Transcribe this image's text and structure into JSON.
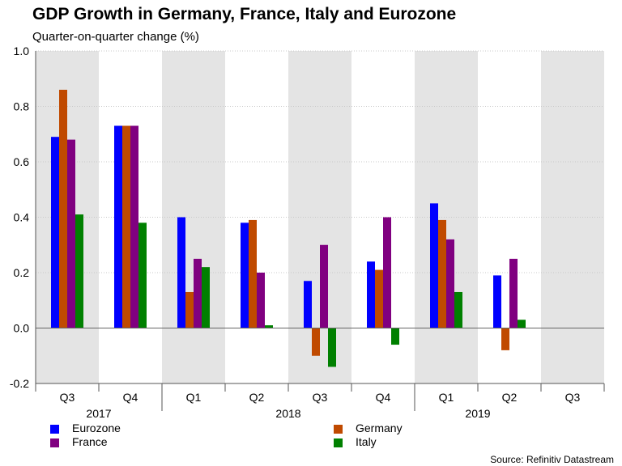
{
  "chart_data": {
    "type": "bar",
    "title": "GDP Growth in Germany, France, Italy and Eurozone",
    "subtitle": "Quarter-on-quarter change (%)",
    "xlabel": "",
    "ylabel": "",
    "ylim": [
      -0.2,
      1.0
    ],
    "yticks": [
      -0.2,
      0.0,
      0.2,
      0.4,
      0.6,
      0.8,
      1.0
    ],
    "categories": [
      "Q3",
      "Q4",
      "Q1",
      "Q2",
      "Q3",
      "Q4",
      "Q1",
      "Q2",
      "Q3"
    ],
    "years": [
      {
        "label": "2017",
        "center_index": 0.5
      },
      {
        "label": "2018",
        "center_index": 3.5
      },
      {
        "label": "2019",
        "center_index": 6.5
      }
    ],
    "series": [
      {
        "name": "Eurozone",
        "color": "#0000ff",
        "values": [
          0.69,
          0.73,
          0.4,
          0.38,
          0.17,
          0.24,
          0.45,
          0.19,
          null
        ]
      },
      {
        "name": "Germany",
        "color": "#c04a00",
        "values": [
          0.86,
          0.73,
          0.13,
          0.39,
          -0.1,
          0.21,
          0.39,
          -0.08,
          null
        ]
      },
      {
        "name": "France",
        "color": "#800080",
        "values": [
          0.68,
          0.73,
          0.25,
          0.2,
          0.3,
          0.4,
          0.32,
          0.25,
          null
        ]
      },
      {
        "name": "Italy",
        "color": "#008000",
        "values": [
          0.41,
          0.38,
          0.22,
          0.01,
          -0.14,
          -0.06,
          0.13,
          0.03,
          null
        ]
      }
    ],
    "grid": true,
    "legend_position": "bottom",
    "source": "Source: Refinitiv Datastream"
  }
}
